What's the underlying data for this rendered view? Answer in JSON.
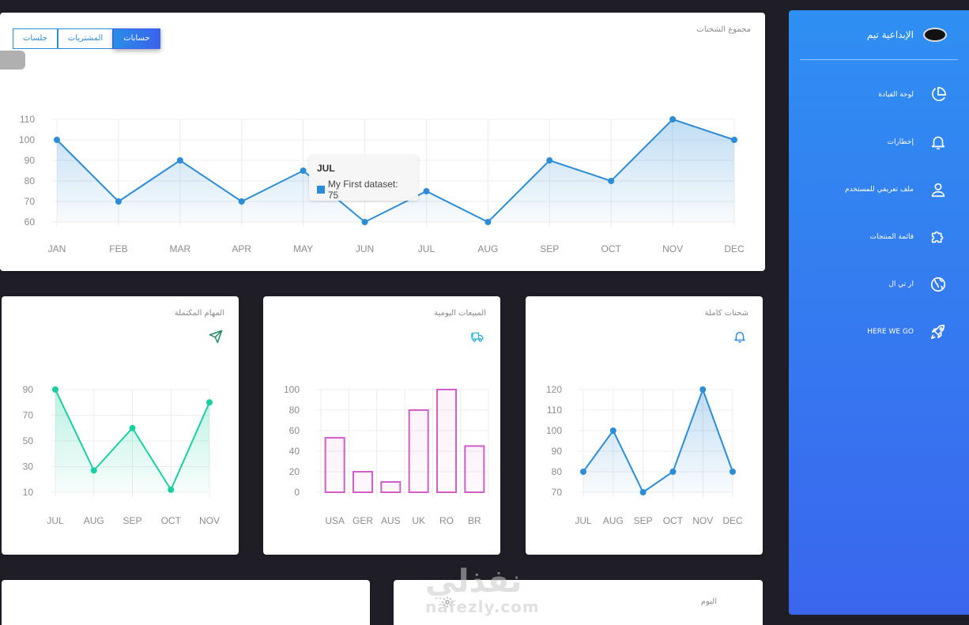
{
  "colors": {
    "primary": "#2d8cd6",
    "sidebar_top": "#2f8ff2",
    "sidebar_bottom": "#3a66ee",
    "teal": "#19cfa0",
    "magenta": "#d05ec6"
  },
  "main_card": {
    "title": "مجموع الشحنات",
    "tabs": [
      {
        "label": "حسابات",
        "active": true
      },
      {
        "label": "المشتريات",
        "active": false
      },
      {
        "label": "جلسات",
        "active": false
      }
    ],
    "tooltip": {
      "title": "JUL",
      "label": "My First dataset: 75"
    }
  },
  "cards": {
    "completed_tasks": {
      "title": "المهام المكتملة",
      "icon": "paper-plane-icon"
    },
    "daily_sales": {
      "title": "المبيعات اليومية",
      "icon": "delivery-truck-icon"
    },
    "full_shipments": {
      "title": "شحنات كاملة",
      "icon": "bell-icon"
    },
    "today": {
      "title": "اليوم",
      "icon": "gear-icon"
    }
  },
  "sidebar": {
    "brand": "الإبداعية تيم",
    "items": [
      {
        "label": "لوحة القيادة",
        "icon": "pie-chart-icon"
      },
      {
        "label": "إخطارات",
        "icon": "bell-icon"
      },
      {
        "label": "ملف تعريفي للمستخدم",
        "icon": "user-icon"
      },
      {
        "label": "قائمة المنتجات",
        "icon": "puzzle-icon"
      },
      {
        "label": "ار تي ال",
        "icon": "globe-icon"
      },
      {
        "label": "HERE WE GO",
        "icon": "rocket-icon"
      }
    ]
  },
  "watermark": {
    "arabic": "نفذلي",
    "latin": "nafezly.com"
  },
  "chart_data": [
    {
      "type": "area",
      "categories": [
        "JAN",
        "FEB",
        "MAR",
        "APR",
        "MAY",
        "JUN",
        "JUL",
        "AUG",
        "SEP",
        "OCT",
        "NOV",
        "DEC"
      ],
      "series": [
        {
          "name": "My First dataset",
          "values": [
            100,
            70,
            90,
            70,
            85,
            60,
            75,
            60,
            90,
            80,
            110,
            100
          ]
        }
      ],
      "ylim": [
        60,
        110
      ],
      "yticks": [
        60,
        70,
        80,
        90,
        100,
        110
      ],
      "grid": true
    },
    {
      "type": "area",
      "categories": [
        "JUL",
        "AUG",
        "SEP",
        "OCT",
        "NOV"
      ],
      "series": [
        {
          "values": [
            90,
            27,
            60,
            12,
            80
          ]
        }
      ],
      "ylim": [
        10,
        90
      ],
      "yticks": [
        10,
        30,
        50,
        70,
        90
      ],
      "grid": true
    },
    {
      "type": "bar",
      "categories": [
        "USA",
        "GER",
        "AUS",
        "UK",
        "RO",
        "BR"
      ],
      "series": [
        {
          "values": [
            53,
            20,
            10,
            80,
            100,
            45
          ]
        }
      ],
      "ylim": [
        0,
        100
      ],
      "yticks": [
        0,
        20,
        40,
        60,
        80,
        100
      ],
      "grid": true
    },
    {
      "type": "area",
      "categories": [
        "JUL",
        "AUG",
        "SEP",
        "OCT",
        "NOV",
        "DEC"
      ],
      "series": [
        {
          "values": [
            80,
            100,
            70,
            80,
            120,
            80
          ]
        }
      ],
      "ylim": [
        70,
        120
      ],
      "yticks": [
        70,
        80,
        90,
        100,
        110,
        120
      ],
      "grid": true
    }
  ]
}
